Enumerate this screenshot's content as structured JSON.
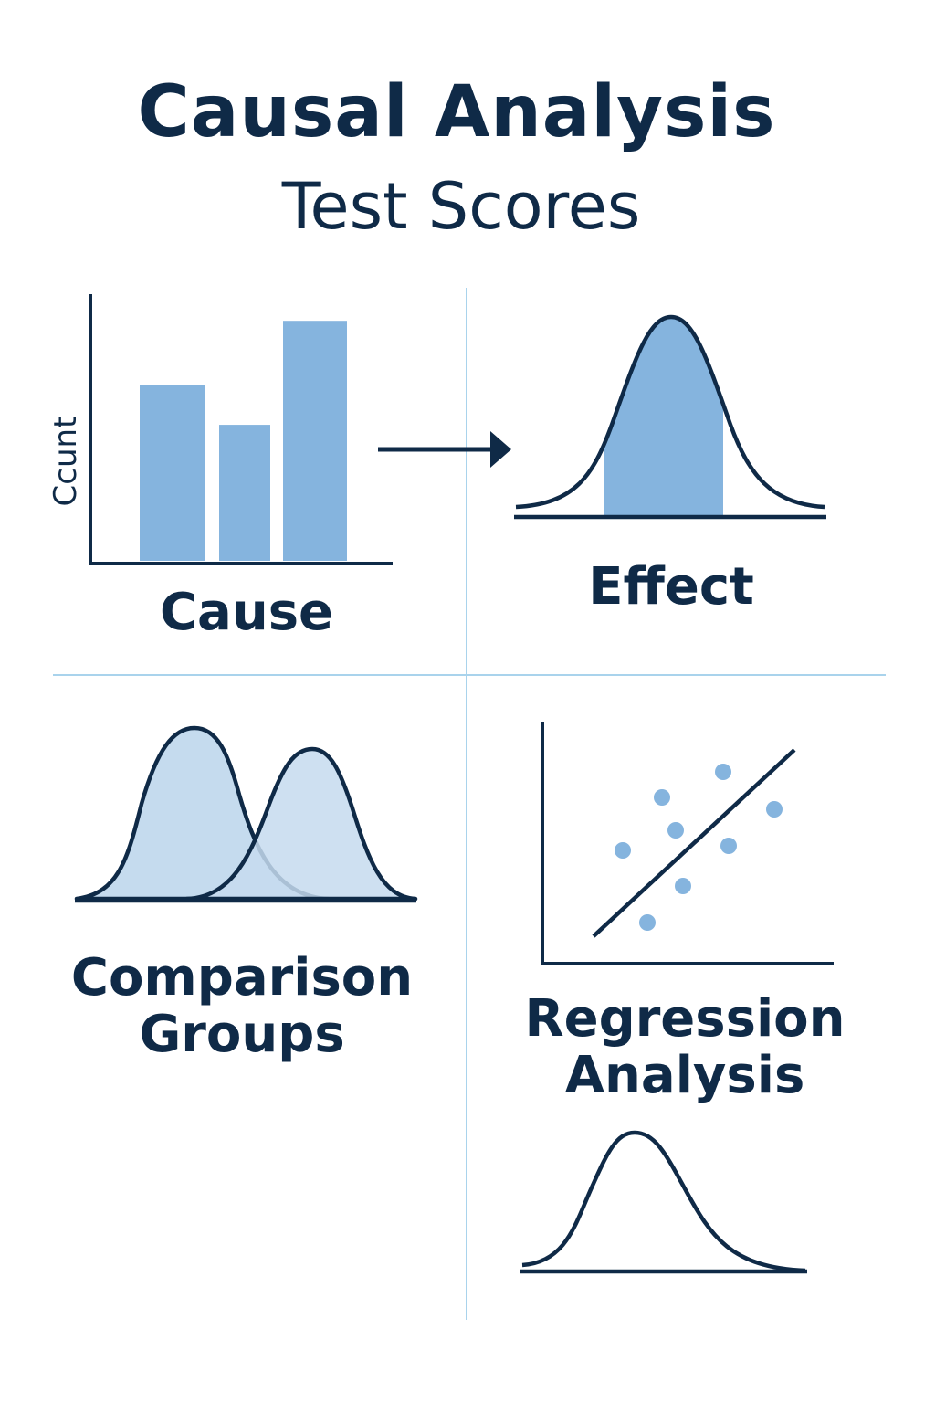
{
  "header": {
    "title": "Causal Analysis",
    "subtitle": "Test Scores"
  },
  "panels": {
    "cause": {
      "label": "Cause",
      "y_axis_label": "Ccunt"
    },
    "effect": {
      "label": "Effect"
    },
    "comparison": {
      "label_line1": "Comparison",
      "label_line2": "Groups"
    },
    "regression": {
      "label_line1": "Regression",
      "label_line2": "Analysis"
    }
  },
  "colors": {
    "navy": "#0f2a47",
    "bar_blue": "#85b4de",
    "light_fill": "#c5dbee",
    "divider": "#a9d3ec"
  },
  "chart_data": {
    "type": "bar",
    "categories": [
      "",
      "",
      ""
    ],
    "values": [
      0.66,
      0.51,
      0.9
    ],
    "ylabel": "Ccunt",
    "xlabel": "Cause"
  }
}
